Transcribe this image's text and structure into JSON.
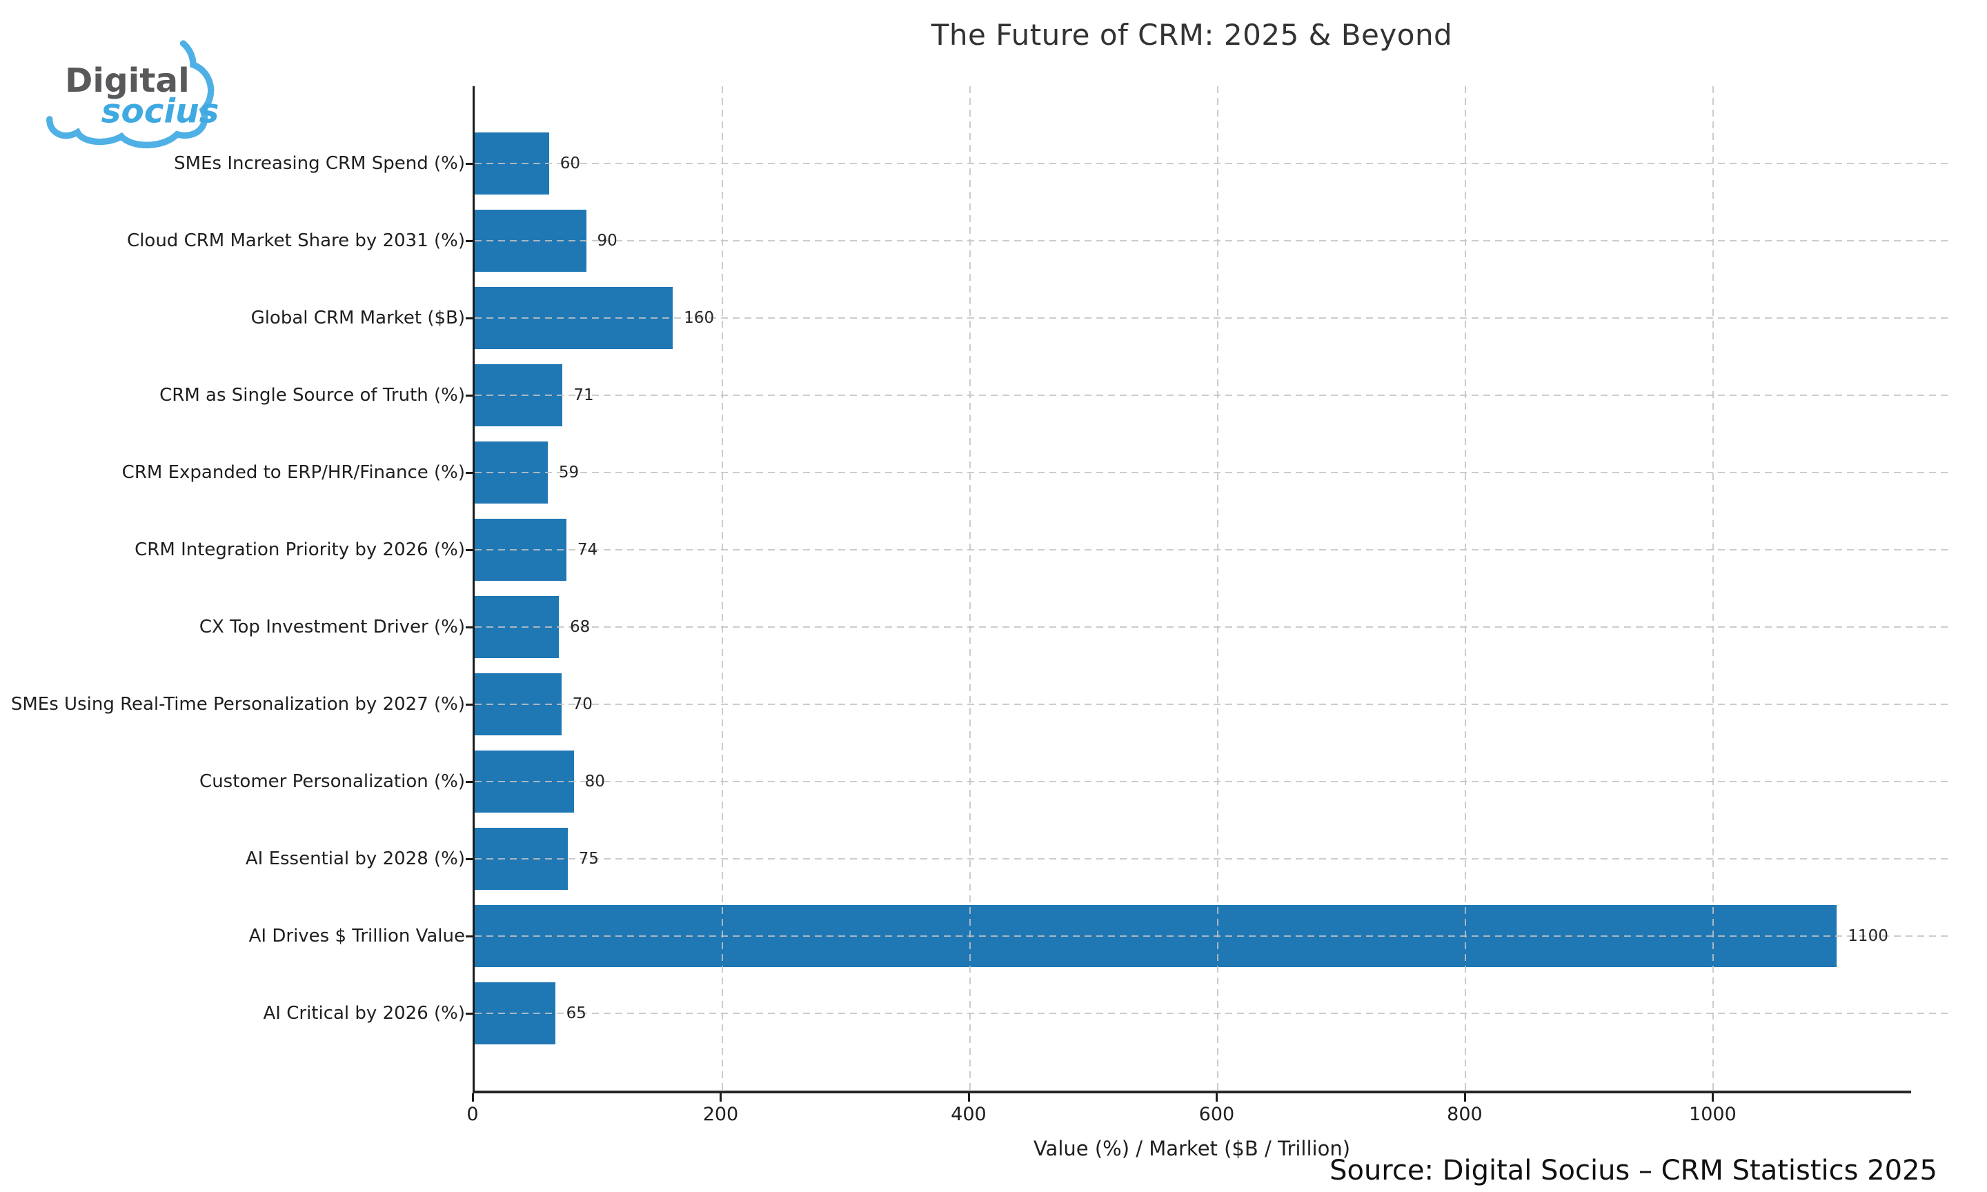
{
  "title": "The Future of CRM: 2025 & Beyond",
  "logo": {
    "word1": "Digital",
    "word2": "socius",
    "colors": {
      "red": "#f26d6d",
      "green": "#90d3a1",
      "blue": "#4fb0e5",
      "text_gray": "#58595b",
      "text_blue": "#3fa9e1"
    }
  },
  "chart_data": {
    "type": "bar",
    "orientation": "horizontal",
    "title": "The Future of CRM: 2025 & Beyond",
    "categories": [
      "SMEs Increasing CRM Spend (%)",
      "Cloud CRM Market Share by 2031 (%)",
      "Global CRM Market ($B)",
      "CRM as Single Source of Truth (%)",
      "CRM Expanded to ERP/HR/Finance (%)",
      "CRM Integration Priority by 2026 (%)",
      "CX Top Investment Driver (%)",
      "SMEs Using Real-Time Personalization by 2027 (%)",
      "Customer Personalization (%)",
      "AI Essential by 2028 (%)",
      "AI Drives $ Trillion Value",
      "AI Critical by 2026 (%)"
    ],
    "values": [
      60,
      90,
      160,
      71,
      59,
      74,
      68,
      70,
      80,
      75,
      1100,
      65
    ],
    "xlabel": "Value (%) / Market ($B / Trillion)",
    "xticks": [
      0,
      200,
      400,
      600,
      800,
      1000
    ],
    "xlim": [
      0,
      1160
    ],
    "bar_color": "#1f77b4",
    "grid": "dashed gridlines on both axes, drawn over bars",
    "legend": "none",
    "value_labels": true
  },
  "source": "Source: Digital Socius – CRM Statistics 2025"
}
